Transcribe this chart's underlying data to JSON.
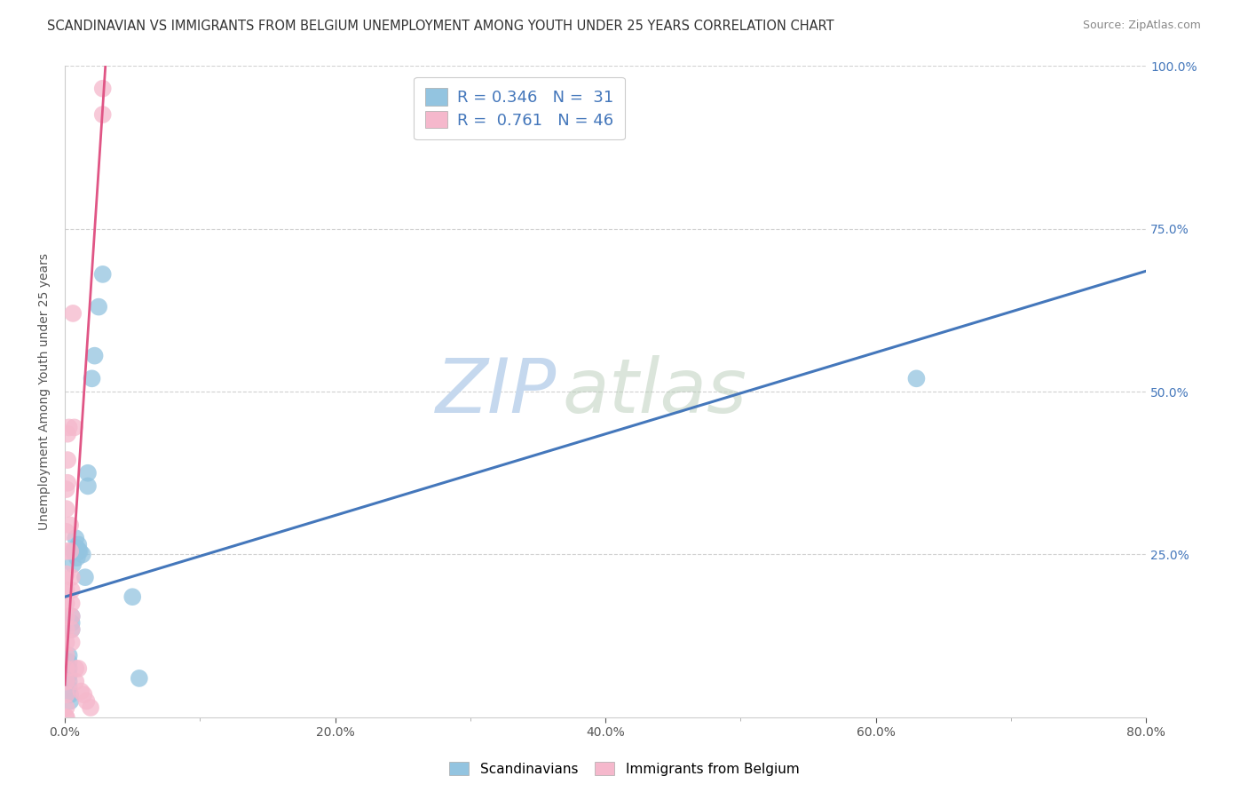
{
  "title": "SCANDINAVIAN VS IMMIGRANTS FROM BELGIUM UNEMPLOYMENT AMONG YOUTH UNDER 25 YEARS CORRELATION CHART",
  "source": "Source: ZipAtlas.com",
  "ylabel": "Unemployment Among Youth under 25 years",
  "xlim": [
    0.0,
    0.8
  ],
  "ylim": [
    0.0,
    1.0
  ],
  "xtick_labels": [
    "0.0%",
    "",
    "20.0%",
    "",
    "40.0%",
    "",
    "60.0%",
    "",
    "80.0%"
  ],
  "xtick_values": [
    0.0,
    0.1,
    0.2,
    0.3,
    0.4,
    0.5,
    0.6,
    0.7,
    0.8
  ],
  "ytick_labels": [
    "25.0%",
    "50.0%",
    "75.0%",
    "100.0%"
  ],
  "ytick_values": [
    0.25,
    0.5,
    0.75,
    1.0
  ],
  "watermark_zip": "ZIP",
  "watermark_atlas": "atlas",
  "scatter_blue": [
    [
      0.003,
      0.095
    ],
    [
      0.003,
      0.085
    ],
    [
      0.003,
      0.075
    ],
    [
      0.003,
      0.065
    ],
    [
      0.003,
      0.055
    ],
    [
      0.003,
      0.045
    ],
    [
      0.004,
      0.035
    ],
    [
      0.004,
      0.025
    ],
    [
      0.005,
      0.155
    ],
    [
      0.005,
      0.145
    ],
    [
      0.005,
      0.135
    ],
    [
      0.006,
      0.255
    ],
    [
      0.006,
      0.235
    ],
    [
      0.007,
      0.255
    ],
    [
      0.008,
      0.275
    ],
    [
      0.009,
      0.26
    ],
    [
      0.009,
      0.245
    ],
    [
      0.01,
      0.265
    ],
    [
      0.01,
      0.255
    ],
    [
      0.011,
      0.255
    ],
    [
      0.013,
      0.25
    ],
    [
      0.015,
      0.215
    ],
    [
      0.017,
      0.375
    ],
    [
      0.017,
      0.355
    ],
    [
      0.02,
      0.52
    ],
    [
      0.022,
      0.555
    ],
    [
      0.025,
      0.63
    ],
    [
      0.028,
      0.68
    ],
    [
      0.05,
      0.185
    ],
    [
      0.055,
      0.06
    ],
    [
      0.63,
      0.52
    ]
  ],
  "scatter_pink": [
    [
      0.001,
      0.35
    ],
    [
      0.001,
      0.32
    ],
    [
      0.001,
      0.285
    ],
    [
      0.001,
      0.255
    ],
    [
      0.001,
      0.22
    ],
    [
      0.001,
      0.195
    ],
    [
      0.001,
      0.175
    ],
    [
      0.001,
      0.155
    ],
    [
      0.001,
      0.135
    ],
    [
      0.001,
      0.115
    ],
    [
      0.001,
      0.095
    ],
    [
      0.001,
      0.075
    ],
    [
      0.001,
      0.055
    ],
    [
      0.001,
      0.035
    ],
    [
      0.001,
      0.015
    ],
    [
      0.002,
      0.435
    ],
    [
      0.002,
      0.395
    ],
    [
      0.002,
      0.36
    ],
    [
      0.003,
      0.445
    ],
    [
      0.004,
      0.295
    ],
    [
      0.004,
      0.255
    ],
    [
      0.005,
      0.215
    ],
    [
      0.005,
      0.195
    ],
    [
      0.005,
      0.175
    ],
    [
      0.005,
      0.155
    ],
    [
      0.005,
      0.135
    ],
    [
      0.005,
      0.115
    ],
    [
      0.006,
      0.62
    ],
    [
      0.007,
      0.445
    ],
    [
      0.008,
      0.075
    ],
    [
      0.008,
      0.055
    ],
    [
      0.01,
      0.075
    ],
    [
      0.012,
      0.04
    ],
    [
      0.014,
      0.035
    ],
    [
      0.016,
      0.025
    ],
    [
      0.019,
      0.015
    ],
    [
      0.001,
      0.0
    ],
    [
      0.001,
      0.0
    ],
    [
      0.028,
      0.965
    ],
    [
      0.028,
      0.925
    ]
  ],
  "blue_line_x": [
    0.0,
    0.8
  ],
  "blue_line_y": [
    0.185,
    0.685
  ],
  "pink_line_x": [
    0.0,
    0.03
  ],
  "pink_line_y": [
    0.05,
    1.0
  ],
  "blue_color": "#93c4e0",
  "pink_color": "#f5b8cc",
  "blue_line_color": "#4477bb",
  "pink_line_color": "#e05585",
  "background_color": "#ffffff",
  "grid_color": "#cccccc",
  "title_fontsize": 10.5,
  "axis_label_fontsize": 10,
  "tick_fontsize": 10,
  "legend_fontsize": 13
}
